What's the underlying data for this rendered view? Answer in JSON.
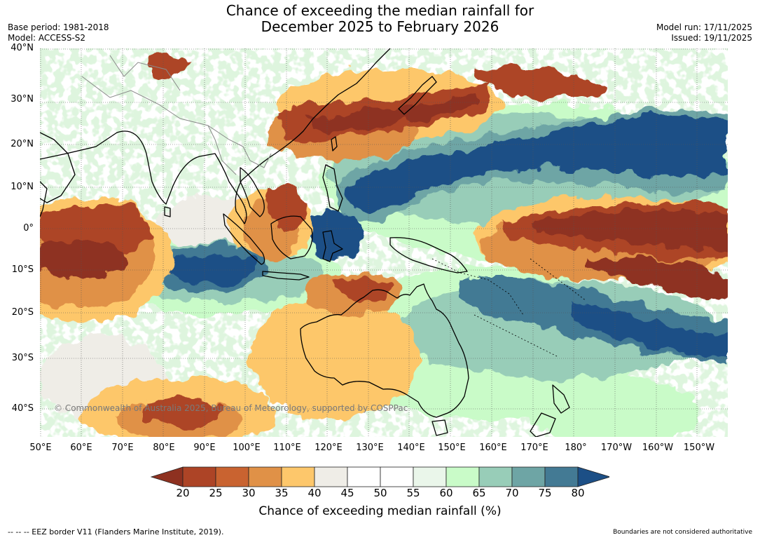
{
  "header": {
    "title_line1": "Chance of exceeding the median rainfall for",
    "title_line2": "December 2025 to February 2026",
    "base_period": "Base period: 1981-2018",
    "model": "Model: ACCESS-S2",
    "model_run": "Model run: 17/11/2025",
    "issued": "Issued: 19/11/2025"
  },
  "map": {
    "lat_labels": [
      "40°N",
      "30°N",
      "20°N",
      "10°N",
      "0°",
      "10°S",
      "20°S",
      "30°S",
      "40°S"
    ],
    "lon_labels": [
      "50°E",
      "60°E",
      "70°E",
      "80°E",
      "90°E",
      "100°E",
      "110°E",
      "120°E",
      "130°E",
      "140°E",
      "150°E",
      "160°E",
      "170°E",
      "180°",
      "170°W",
      "160°W",
      "150°W"
    ],
    "copyright": "© Commonwealth of Australia 2025, Bureau of Meteorology, supported by COSPPac"
  },
  "colorbar": {
    "ticks": [
      "20",
      "25",
      "30",
      "35",
      "40",
      "45",
      "50",
      "55",
      "60",
      "65",
      "70",
      "75",
      "80"
    ],
    "colors": [
      "#8e3120",
      "#ad4426",
      "#c96330",
      "#e09147",
      "#fdc76b",
      "#efede7",
      "#ffffff",
      "#ffffff",
      "#eaf6ea",
      "#c9fbc8",
      "#98cdb8",
      "#6ea5a5",
      "#437a94",
      "#1c4f86"
    ],
    "title": "Chance of exceeding median rainfall (%)"
  },
  "footer": {
    "eez_note": "--  --  -- EEZ border V11 (Flanders Marine Institute, 2019).",
    "disclaimer": "Boundaries are not considered authoritative"
  }
}
